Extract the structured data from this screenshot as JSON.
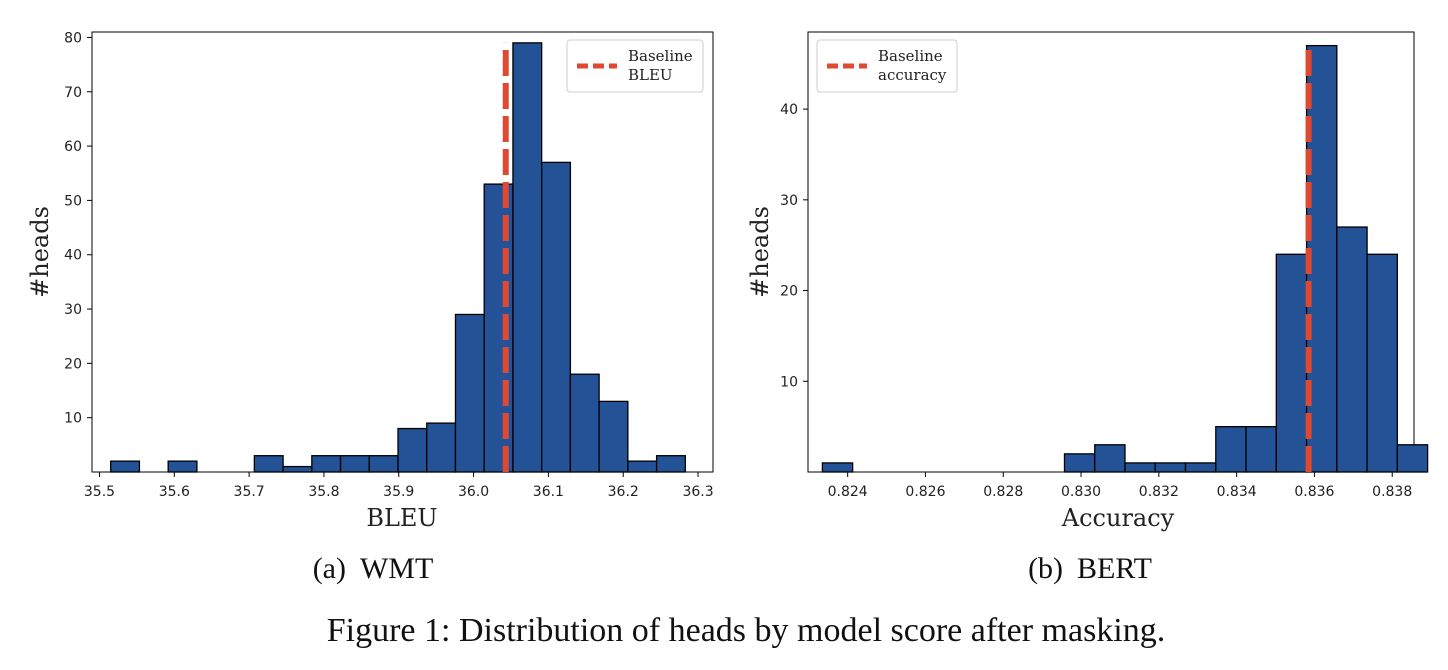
{
  "chart_data": [
    {
      "type": "bar",
      "subcaption_label": "(a)",
      "subcaption_name": "WMT",
      "xlabel": "BLEU",
      "ylabel": "#heads",
      "xlim": [
        35.49,
        36.32
      ],
      "ylim": [
        0,
        81
      ],
      "xticks": [
        35.5,
        35.6,
        35.7,
        35.8,
        35.9,
        36.0,
        36.1,
        36.2,
        36.3
      ],
      "xtick_labels": [
        "35.5",
        "35.6",
        "35.7",
        "35.8",
        "35.9",
        "36.0",
        "36.1",
        "36.2",
        "36.3"
      ],
      "yticks": [
        10,
        20,
        30,
        40,
        50,
        60,
        70,
        80
      ],
      "ytick_labels": [
        "10",
        "20",
        "30",
        "40",
        "50",
        "60",
        "70",
        "80"
      ],
      "bin_start": 35.515,
      "bin_width": 0.0384,
      "counts": [
        2,
        0,
        2,
        0,
        0,
        3,
        1,
        3,
        3,
        3,
        8,
        9,
        29,
        53,
        79,
        57,
        18,
        13,
        2,
        3
      ],
      "baseline": 36.043,
      "baseline_top": 79,
      "legend_lines": [
        "Baseline",
        "BLEU"
      ],
      "legend_position": "top-right",
      "bar_color": "#235396",
      "baseline_color": "#e0492f"
    },
    {
      "type": "bar",
      "subcaption_label": "(b)",
      "subcaption_name": "BERT",
      "xlabel": "Accuracy",
      "ylabel": "#heads",
      "xlim": [
        0.82298,
        0.83856
      ],
      "ylim": [
        0,
        48.5
      ],
      "xticks": [
        0.824,
        0.826,
        0.828,
        0.83,
        0.832,
        0.834,
        0.836,
        0.838
      ],
      "xtick_labels": [
        "0.824",
        "0.826",
        "0.828",
        "0.830",
        "0.832",
        "0.834",
        "0.836",
        "0.838"
      ],
      "yticks": [
        10,
        20,
        30,
        40
      ],
      "ytick_labels": [
        "10",
        "20",
        "30",
        "40"
      ],
      "bin_start": 0.82335,
      "bin_width": 0.000778,
      "counts": [
        1,
        0,
        0,
        0,
        0,
        0,
        0,
        0,
        2,
        3,
        1,
        1,
        1,
        5,
        5,
        24,
        47,
        27,
        24,
        3
      ],
      "baseline": 0.83585,
      "baseline_top": 47,
      "legend_lines": [
        "Baseline",
        "accuracy"
      ],
      "legend_position": "top-left",
      "bar_color": "#235396",
      "baseline_color": "#e0492f"
    }
  ],
  "figure_caption": "Figure 1:  Distribution of heads by model score after masking."
}
